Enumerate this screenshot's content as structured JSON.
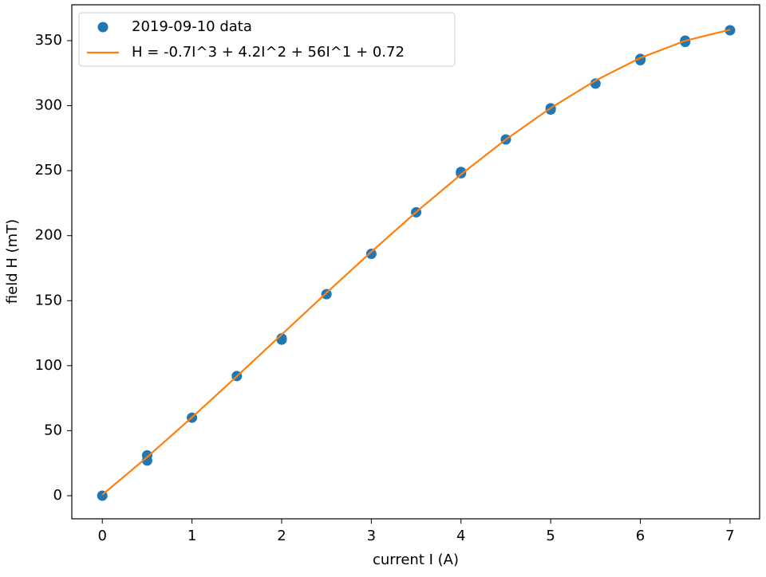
{
  "chart_data": {
    "type": "scatter+line",
    "xlabel": "current I (A)",
    "ylabel": "field H (mT)",
    "xlim": [
      -0.34,
      7.33
    ],
    "ylim": [
      -17.8,
      377.6
    ],
    "xticks": [
      0,
      1,
      2,
      3,
      4,
      5,
      6,
      7
    ],
    "yticks": [
      0,
      50,
      100,
      150,
      200,
      250,
      300,
      350
    ],
    "legend": "upper left",
    "series": [
      {
        "name": "2019-09-10 data",
        "type": "scatter",
        "color": "#1f77b4",
        "x": [
          0,
          0.5,
          0.5,
          1,
          1.5,
          2,
          2,
          2.5,
          3,
          3.5,
          4,
          4,
          4.5,
          5,
          5,
          5.5,
          6,
          6,
          6.5,
          6.5,
          7
        ],
        "values": [
          0,
          31,
          27,
          60,
          92,
          121,
          120,
          155,
          186,
          218,
          249,
          248,
          274,
          298,
          297,
          317,
          336,
          335,
          350,
          349,
          358
        ]
      },
      {
        "name": "H = -0.7I^3 + 4.2I^2 + 56I^1 + 0.72",
        "type": "line",
        "color": "#ff7f0e",
        "x": [
          0,
          0.5,
          1,
          1.5,
          2,
          2.5,
          3,
          3.5,
          4,
          4.5,
          5,
          5.5,
          6,
          6.5,
          7
        ],
        "values": [
          0.72,
          29.68,
          60.22,
          91.81,
          123.92,
          156.03,
          187.62,
          218.16,
          247.12,
          273.98,
          298.22,
          319.31,
          336.72,
          349.93,
          358.42
        ]
      }
    ]
  }
}
